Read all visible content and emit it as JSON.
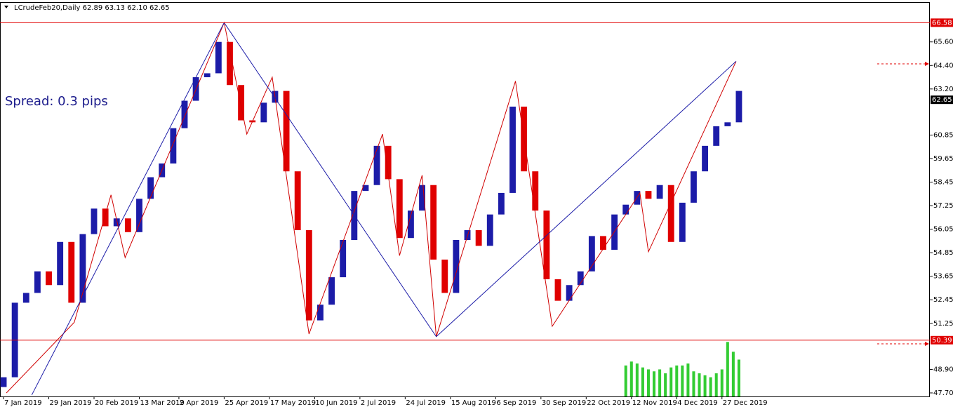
{
  "chart_data": {
    "type": "candlestick",
    "title": "LCrudeFeb20,Daily  62.89 63.13 62.10 62.65",
    "annotation": "Spread: 0.3 pips",
    "up_color": "#1c1ca8",
    "down_color": "#e00000",
    "x": [
      0,
      4,
      8,
      12,
      16,
      20,
      24,
      28,
      32,
      36,
      40,
      44,
      48,
      52,
      56,
      60,
      64,
      68,
      72,
      76,
      80,
      84,
      88,
      92,
      96,
      100,
      104,
      108,
      112,
      116,
      120,
      124,
      128,
      132,
      136,
      140,
      144,
      148,
      152,
      156,
      160,
      164,
      168,
      172,
      176,
      180,
      184,
      188,
      192,
      196,
      200,
      204,
      208,
      212,
      216,
      220,
      224,
      228,
      232,
      236,
      240,
      244,
      248,
      252,
      256,
      260
    ],
    "open": [
      48.0,
      48.5,
      52.3,
      52.8,
      53.9,
      53.2,
      55.4,
      52.3,
      55.8,
      57.1,
      56.2,
      56.6,
      55.9,
      57.6,
      58.7,
      59.4,
      61.2,
      62.6,
      63.8,
      64.0,
      65.6,
      63.4,
      61.6,
      61.5,
      62.5,
      63.1,
      59.0,
      56.0,
      51.4,
      52.2,
      53.6,
      55.5,
      58.0,
      58.3,
      60.3,
      58.6,
      55.6,
      57.0,
      58.3,
      54.5,
      52.8,
      55.5,
      56.0,
      55.2,
      56.8,
      57.9,
      62.3,
      59.0,
      57.0,
      53.5,
      52.4,
      53.2,
      53.9,
      55.7,
      55.0,
      56.8,
      57.3,
      58.0,
      57.6,
      58.3,
      55.4,
      57.4,
      59.0,
      60.3,
      61.3,
      61.5
    ],
    "close": [
      48.5,
      52.3,
      52.8,
      53.9,
      53.2,
      55.4,
      52.3,
      55.8,
      57.1,
      56.2,
      56.6,
      55.9,
      57.6,
      58.7,
      59.4,
      61.2,
      62.6,
      63.8,
      64.0,
      65.6,
      63.4,
      61.6,
      61.5,
      62.5,
      63.1,
      59.0,
      56.0,
      51.4,
      52.2,
      53.6,
      55.5,
      58.0,
      58.3,
      60.3,
      58.6,
      55.6,
      57.0,
      58.3,
      54.5,
      52.8,
      55.5,
      56.0,
      55.2,
      56.8,
      57.9,
      62.3,
      59.0,
      57.0,
      53.5,
      52.4,
      53.2,
      53.9,
      55.7,
      55.0,
      56.8,
      57.3,
      58.0,
      57.6,
      58.3,
      55.4,
      57.4,
      59.0,
      60.3,
      61.3,
      61.5,
      63.1
    ],
    "lines": [
      {
        "color": "#d00000",
        "x": [
          1,
          25,
          38,
          43,
          78,
          86,
          95,
          108,
          134,
          140,
          148,
          153,
          181,
          194,
          225,
          228,
          259
        ],
        "values": [
          47.7,
          51.3,
          57.8,
          54.6,
          66.58,
          60.9,
          63.8,
          50.7,
          60.9,
          54.7,
          58.8,
          50.57,
          63.6,
          51.1,
          57.9,
          54.9,
          64.61
        ]
      },
      {
        "color": "#1c1ca8",
        "x": [
          10,
          78,
          153,
          259
        ],
        "values": [
          47.6,
          66.58,
          50.57,
          64.61
        ]
      }
    ],
    "indicator": {
      "color": "#33cc33",
      "x": [
        220,
        222,
        224,
        226,
        228,
        230,
        232,
        234,
        236,
        238,
        240,
        242,
        244,
        246,
        248,
        250,
        252,
        254,
        256,
        258,
        260
      ],
      "values": [
        49.1,
        49.3,
        49.2,
        49.0,
        48.9,
        48.8,
        48.9,
        48.7,
        49.0,
        49.1,
        49.1,
        49.2,
        48.8,
        48.7,
        48.6,
        48.5,
        48.7,
        48.9,
        50.3,
        49.8,
        49.4
      ]
    },
    "levels": [
      {
        "value": 66.58,
        "color": "#e00000"
      },
      {
        "value": 50.39,
        "color": "#e00000"
      }
    ],
    "current": {
      "value": 62.65,
      "color": "#000000"
    },
    "xlim": [
      -1.25,
      327.5
    ],
    "ylim": [
      47.52,
      67.63
    ],
    "yticks": [
      65.6,
      64.4,
      63.2,
      60.85,
      59.65,
      58.45,
      57.25,
      56.05,
      54.85,
      53.65,
      52.45,
      51.25,
      48.9,
      47.7
    ],
    "ytick_labels": [
      "65.60",
      "64.40",
      "63.20",
      "60.85",
      "59.65",
      "58.45",
      "57.25",
      "56.05",
      "54.85",
      "53.65",
      "52.45",
      "51.25",
      "48.90",
      "47.70"
    ],
    "xticks": [
      {
        "value": 0,
        "label": "7 Jan 2019"
      },
      {
        "value": 16,
        "label": "29 Jan 2019"
      },
      {
        "value": 32,
        "label": "20 Feb 2019"
      },
      {
        "value": 48,
        "label": "13 Mar 2019"
      },
      {
        "value": 62,
        "label": "2 Apr 2019"
      },
      {
        "value": 78,
        "label": "25 Apr 2019"
      },
      {
        "value": 94,
        "label": "17 May 2019"
      },
      {
        "value": 110,
        "label": "10 Jun 2019"
      },
      {
        "value": 126,
        "label": "2 Jul 2019"
      },
      {
        "value": 142,
        "label": "24 Jul 2019"
      },
      {
        "value": 158,
        "label": "15 Aug 2019"
      },
      {
        "value": 174,
        "label": "6 Sep 2019"
      },
      {
        "value": 190,
        "label": "30 Sep 2019"
      },
      {
        "value": 206,
        "label": "22 Oct 2019"
      },
      {
        "value": 222,
        "label": "12 Nov 2019"
      },
      {
        "value": 238,
        "label": "4 Dec 2019"
      },
      {
        "value": 254,
        "label": "27 Dec 2019"
      }
    ]
  }
}
